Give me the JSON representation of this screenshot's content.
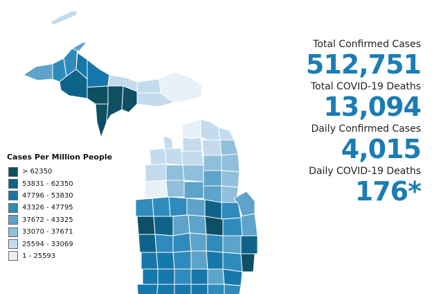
{
  "legend": {
    "title": "Cases Per Million People",
    "items": [
      {
        "label": "> 62350",
        "color": "#0d4f63"
      },
      {
        "label": "53831 - 62350",
        "color": "#0e6488"
      },
      {
        "label": "47796 - 53830",
        "color": "#1677aa"
      },
      {
        "label": "43326 - 47795",
        "color": "#2f8bbb"
      },
      {
        "label": "37672 - 43325",
        "color": "#5ea3c9"
      },
      {
        "label": "33070 - 37671",
        "color": "#8fbfdb"
      },
      {
        "label": "25594 - 33069",
        "color": "#c3dbec"
      },
      {
        "label": "1 - 25593",
        "color": "#e8f0f8"
      }
    ]
  },
  "stats": [
    {
      "label": "Total Confirmed Cases",
      "value": "512,751"
    },
    {
      "label": "Total COVID-19 Deaths",
      "value": "13,094"
    },
    {
      "label": "Daily Confirmed Cases",
      "value": "4,015"
    },
    {
      "label": "Daily COVID-19 Deaths",
      "value": "176*"
    }
  ]
}
